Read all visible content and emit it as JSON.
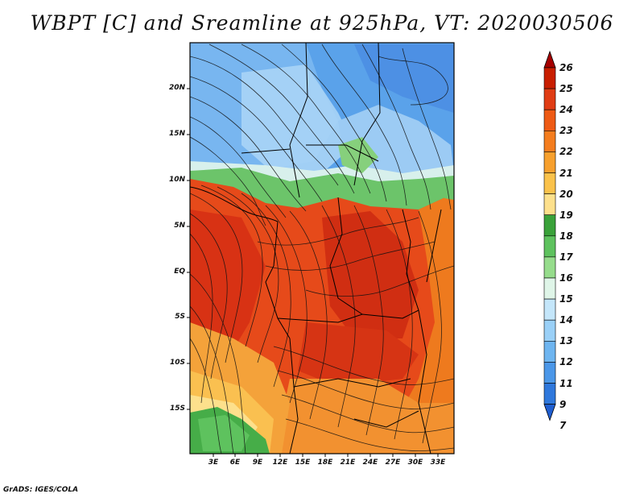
{
  "title": "WBPT [C] and Sreamline at 925hPa, VT: 2020030506",
  "credit": "GrADS: IGES/COLA",
  "lat_labels": [
    "20N",
    "15N",
    "10N",
    "5N",
    "EQ",
    "5S",
    "10S",
    "15S"
  ],
  "lon_labels": [
    "3E",
    "6E",
    "9E",
    "12E",
    "15E",
    "18E",
    "21E",
    "24E",
    "27E",
    "30E",
    "33E"
  ],
  "colorbar": {
    "labels": [
      "26",
      "25",
      "24",
      "23",
      "22",
      "21",
      "20",
      "19",
      "18",
      "17",
      "16",
      "15",
      "14",
      "13",
      "12",
      "11",
      "9",
      "7"
    ],
    "colors": [
      "#a50000",
      "#c81e00",
      "#e03c14",
      "#ee5a14",
      "#f47d1e",
      "#f7a02d",
      "#fac24b",
      "#fde08c",
      "#3aa23a",
      "#5ec25e",
      "#96dc8c",
      "#dff5e8",
      "#c4e6fa",
      "#9ad0f7",
      "#6eb5f0",
      "#4b97e8",
      "#2f78dc",
      "#1f5ed0"
    ]
  },
  "colors": {
    "hot": "#dd3a14",
    "warm": "#f08a24",
    "yellow": "#fbd271",
    "green": "#64c064",
    "cool": "#9fd0f4",
    "blue": "#4a96e6"
  }
}
